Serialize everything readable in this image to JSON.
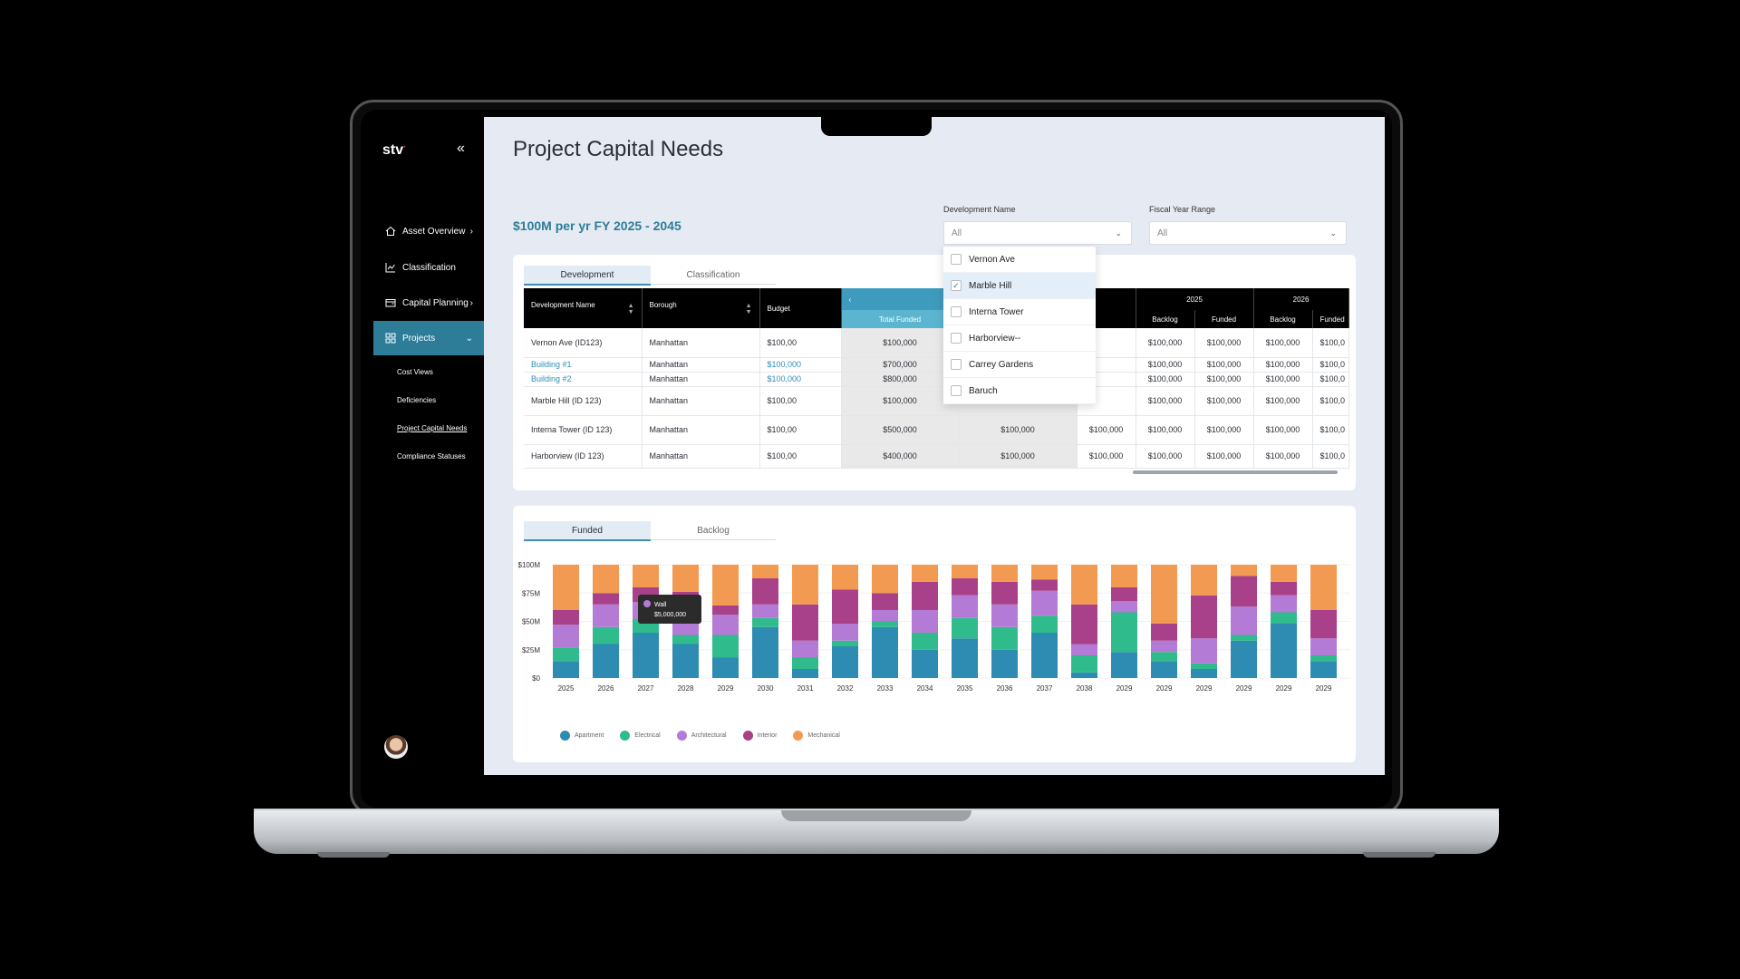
{
  "app": {
    "logo": "stv",
    "collapse_icon": "«"
  },
  "sidebar": {
    "items": [
      {
        "label": "Asset Overview",
        "icon": "home-icon",
        "chevron": "›"
      },
      {
        "label": "Classification",
        "icon": "line-chart-icon",
        "chevron": ""
      },
      {
        "label": "Capital Planning",
        "icon": "wallet-icon",
        "chevron": "›"
      },
      {
        "label": "Projects",
        "icon": "grid-icon",
        "chevron": "⌄"
      }
    ],
    "subitems": [
      "Cost Views",
      "Deficiencies",
      "Project Capital Needs",
      "Compliance Statuses"
    ]
  },
  "page": {
    "title": "Project Capital Needs",
    "subtitle": "$100M per yr FY 2025 - 2045"
  },
  "filters": {
    "development": {
      "label": "Development Name",
      "value": "All"
    },
    "fiscal": {
      "label": "Fiscal Year Range",
      "value": "All"
    }
  },
  "dropdown": {
    "options": [
      {
        "label": "Vernon Ave",
        "checked": false
      },
      {
        "label": "Marble Hill",
        "checked": true
      },
      {
        "label": "Interna Tower",
        "checked": false
      },
      {
        "label": "Harborview--",
        "checked": false
      },
      {
        "label": "Carrey Gardens",
        "checked": false
      },
      {
        "label": "Baruch",
        "checked": false
      }
    ]
  },
  "table": {
    "tabs": [
      "Development",
      "Classification"
    ],
    "headers": {
      "dev": "Development Name",
      "borough": "Borough",
      "budget": "Budget",
      "total_funded": "Total Funded",
      "year_2025": "2025",
      "year_2026": "2026",
      "funded": "Funded",
      "backlog": "Backlog",
      "nav_prev": "‹"
    },
    "rows": [
      {
        "name": "Vernon Ave (ID123)",
        "borough": "Manhattan",
        "budget": "$100,00",
        "total_funded": "$100,000",
        "c2": "",
        "c3": "",
        "f1": "$100,000",
        "f2": "$100,000",
        "f3": "$100,000",
        "f4": "$100,0",
        "link": false
      },
      {
        "name": "Building #1",
        "borough": "Manhattan",
        "budget": "$100,000",
        "total_funded": "$700,000",
        "c2": "",
        "c3": "",
        "f1": "$100,000",
        "f2": "$100,000",
        "f3": "$100,000",
        "f4": "$100,0",
        "link": true
      },
      {
        "name": "Building #2",
        "borough": "Manhattan",
        "budget": "$100,000",
        "total_funded": "$800,000",
        "c2": "",
        "c3": "",
        "f1": "$100,000",
        "f2": "$100,000",
        "f3": "$100,000",
        "f4": "$100,0",
        "link": true
      },
      {
        "name": "Marble Hill (ID 123)",
        "borough": "Manhattan",
        "budget": "$100,00",
        "total_funded": "$100,000",
        "c2": "",
        "c3": "",
        "f1": "$100,000",
        "f2": "$100,000",
        "f3": "$100,000",
        "f4": "$100,0",
        "link": false
      },
      {
        "name": "Interna Tower (ID 123)",
        "borough": "Manhattan",
        "budget": "$100,00",
        "total_funded": "$500,000",
        "c2": "$100,000",
        "c3": "$100,000",
        "f1": "$100,000",
        "f2": "$100,000",
        "f3": "$100,000",
        "f4": "$100,0",
        "link": false
      },
      {
        "name": "Harborview (ID 123)",
        "borough": "Manhattan",
        "budget": "$100,00",
        "total_funded": "$400,000",
        "c2": "$100,000",
        "c3": "$100,000",
        "f1": "$100,000",
        "f2": "$100,000",
        "f3": "$100,000",
        "f4": "$100,0",
        "link": false
      }
    ]
  },
  "chart_tabs": [
    "Funded",
    "Backlog"
  ],
  "tooltip": {
    "label": "Wall",
    "value": "$5,000,000"
  },
  "chart_data": {
    "type": "bar",
    "stacked": true,
    "title": "",
    "xlabel": "",
    "ylabel": "",
    "ylim": [
      0,
      100
    ],
    "yticks": [
      "$0",
      "$25M",
      "$50M",
      "$75M",
      "$100M"
    ],
    "categories": [
      "2025",
      "2026",
      "2027",
      "2028",
      "2029",
      "2030",
      "2031",
      "2032",
      "2033",
      "2034",
      "2035",
      "2036",
      "2037",
      "2038",
      "2029",
      "2029",
      "2029",
      "2029",
      "2029",
      "2029"
    ],
    "series": [
      {
        "name": "Apartment",
        "color": "#2e8bb1",
        "values": [
          15,
          30,
          40,
          30,
          18,
          45,
          8,
          28,
          45,
          25,
          35,
          25,
          40,
          5,
          23,
          15,
          8,
          33,
          48,
          15
        ]
      },
      {
        "name": "Electrical",
        "color": "#2fbb8b",
        "values": [
          12,
          15,
          12,
          8,
          20,
          8,
          10,
          5,
          5,
          15,
          18,
          20,
          15,
          15,
          35,
          8,
          5,
          5,
          10,
          5
        ]
      },
      {
        "name": "Architectural",
        "color": "#b37ad6",
        "values": [
          20,
          20,
          15,
          20,
          18,
          12,
          15,
          15,
          10,
          20,
          20,
          20,
          22,
          10,
          10,
          10,
          22,
          25,
          15,
          15
        ]
      },
      {
        "name": "Interior",
        "color": "#a8418a",
        "values": [
          13,
          10,
          13,
          18,
          8,
          23,
          32,
          30,
          15,
          25,
          15,
          20,
          10,
          35,
          12,
          15,
          38,
          27,
          12,
          25
        ]
      },
      {
        "name": "Mechanical",
        "color": "#f39a52",
        "values": [
          40,
          25,
          20,
          24,
          36,
          12,
          35,
          22,
          25,
          15,
          12,
          15,
          13,
          35,
          20,
          52,
          27,
          10,
          15,
          40
        ]
      }
    ]
  }
}
